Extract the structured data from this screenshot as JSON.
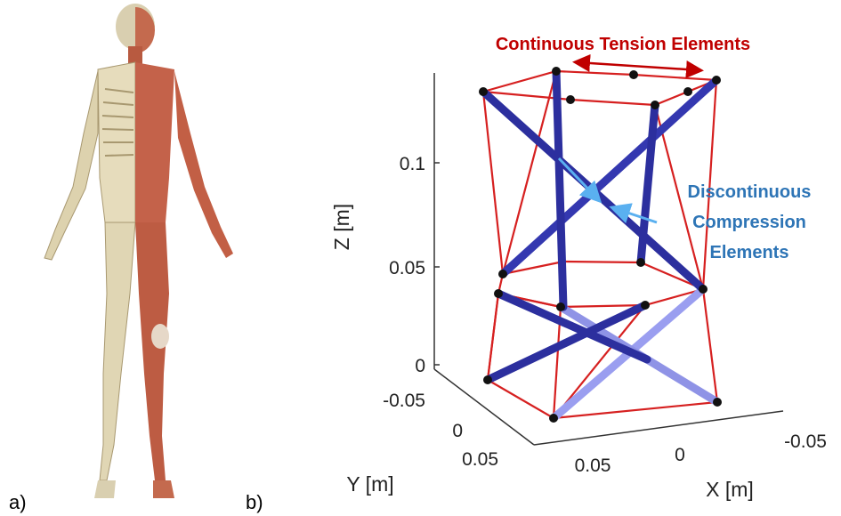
{
  "panels": [
    {
      "label": "a)"
    },
    {
      "label": "b)",
      "annotations": {
        "tension": "Continuous Tension Elements",
        "compression": [
          "Discontinuous",
          "Compression",
          "Elements"
        ]
      },
      "axes": {
        "z": {
          "label": "Z [m]",
          "ticks": [
            "0",
            "0.05",
            "0.1"
          ]
        },
        "y": {
          "label": "Y [m]",
          "ticks": [
            "-0.05",
            "0",
            "0.05"
          ]
        },
        "x": {
          "label": "X [m]",
          "ticks": [
            "0.05",
            "0",
            "-0.05"
          ]
        }
      }
    }
  ]
}
